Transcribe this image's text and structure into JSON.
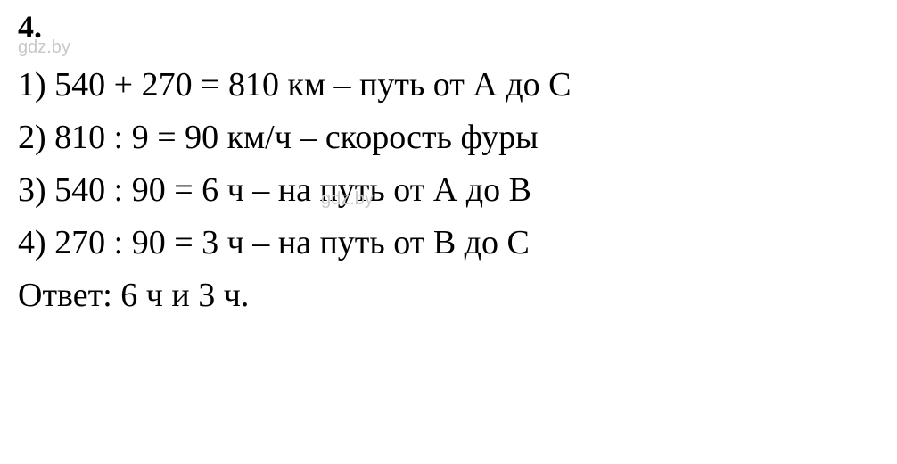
{
  "styling": {
    "background_color": "#ffffff",
    "text_color": "#000000",
    "watermark_color": "#c8c8c8",
    "font_family": "Times New Roman",
    "watermark_font_family": "Arial",
    "problem_number_fontsize": 36,
    "body_fontsize": 38,
    "watermark_fontsize": 20,
    "line_height": 1.55
  },
  "problem_number": "4.",
  "watermark": "gdz.by",
  "lines": {
    "l1": "1) 540 + 270 = 810 км – путь от А до С",
    "l2": "2) 810 : 9 = 90 км/ч – скорость фуры",
    "l3": "3) 540 : 90 = 6 ч – на путь от А до В",
    "l4": "4) 270 : 90 = 3 ч – на путь от В до С",
    "answer": "Ответ: 6 ч и 3 ч."
  }
}
